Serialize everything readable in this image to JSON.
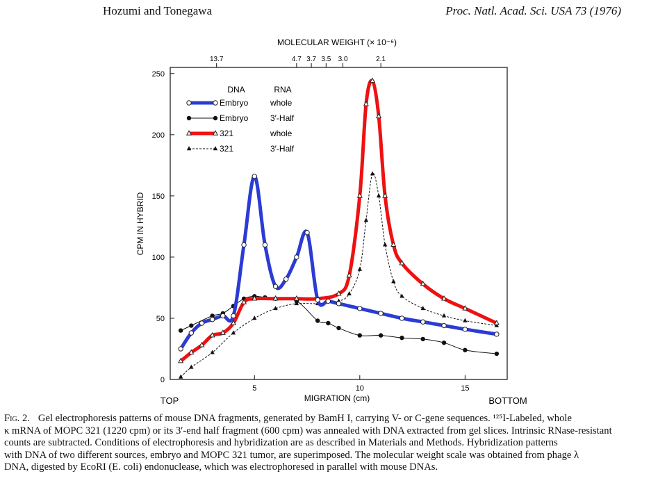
{
  "header": {
    "authors": "Hozumi and Tonegawa",
    "journal": "Proc. Natl. Acad. Sci. USA 73 (1976)"
  },
  "chart_data": {
    "type": "line",
    "xlabel": "MIGRATION (cm)",
    "ylabel": "CPM IN HYBRID",
    "top_axis_label": "MOLECULAR WEIGHT (× 10⁻⁶)",
    "xlim": [
      1,
      17
    ],
    "ylim": [
      0,
      255
    ],
    "x_ticks": [
      "5",
      "10",
      "15"
    ],
    "y_ticks": [
      "0",
      "50",
      "100",
      "150",
      "200",
      "250"
    ],
    "top_ticks": [
      {
        "label": "13.7",
        "x": 3.2
      },
      {
        "label": "4.7",
        "x": 7.0
      },
      {
        "label": "3.7",
        "x": 7.7
      },
      {
        "label": "3.5",
        "x": 8.4
      },
      {
        "label": "3.0",
        "x": 9.2
      },
      {
        "label": "2.1",
        "x": 11.0
      }
    ],
    "end_labels": {
      "left": "TOP",
      "right": "BOTTOM"
    },
    "legend": {
      "position": "top-left",
      "header": [
        "DNA",
        "RNA"
      ],
      "entries": [
        {
          "dna": "Embryo",
          "rna": "whole",
          "color": "#2b3bd6",
          "marker": "open-circle",
          "style": "thick"
        },
        {
          "dna": "Embryo",
          "rna": "3′-Half",
          "color": "#111111",
          "marker": "filled-circle",
          "style": "thin"
        },
        {
          "dna": "321",
          "rna": "whole",
          "color": "#ee1111",
          "marker": "open-triangle",
          "style": "thick"
        },
        {
          "dna": "321",
          "rna": "3′-Half",
          "color": "#111111",
          "marker": "filled-triangle",
          "style": "dashed"
        }
      ]
    },
    "series": [
      {
        "name": "Embryo whole",
        "color": "#2b3bd6",
        "x": [
          1.5,
          2.0,
          2.5,
          3.0,
          3.5,
          4.0,
          4.5,
          5.0,
          5.5,
          6.0,
          6.5,
          7.0,
          7.5,
          8.0,
          8.5,
          9.0,
          10.0,
          11.0,
          12.0,
          13.0,
          14.0,
          15.0,
          16.5
        ],
        "y": [
          25,
          38,
          46,
          49,
          52,
          52,
          110,
          166,
          110,
          76,
          82,
          100,
          120,
          65,
          64,
          62,
          58,
          54,
          50,
          47,
          44,
          41,
          37
        ]
      },
      {
        "name": "Embryo 3'-Half",
        "color": "#111111",
        "x": [
          1.5,
          2.0,
          3.0,
          3.5,
          4.0,
          4.5,
          5.0,
          5.5,
          6.0,
          7.0,
          8.0,
          8.5,
          9.0,
          10.0,
          11.0,
          12.0,
          13.0,
          14.0,
          15.0,
          16.5
        ],
        "y": [
          40,
          44,
          52,
          54,
          60,
          66,
          68,
          67,
          66,
          64,
          48,
          46,
          42,
          36,
          36,
          34,
          33,
          30,
          24,
          21
        ]
      },
      {
        "name": "321 whole",
        "color": "#ee1111",
        "x": [
          1.5,
          2.0,
          2.5,
          3.0,
          3.5,
          4.0,
          4.5,
          5.0,
          6.0,
          7.0,
          8.0,
          9.0,
          9.5,
          10.0,
          10.3,
          10.6,
          10.9,
          11.2,
          11.6,
          12.0,
          13.0,
          14.0,
          15.0,
          16.5
        ],
        "y": [
          15,
          22,
          28,
          36,
          38,
          46,
          63,
          66,
          66,
          66,
          66,
          70,
          85,
          150,
          225,
          244,
          215,
          150,
          110,
          95,
          78,
          66,
          58,
          46
        ]
      },
      {
        "name": "321 3'-Half",
        "color": "#111111",
        "x": [
          1.5,
          2.0,
          3.0,
          4.0,
          5.0,
          6.0,
          7.0,
          8.0,
          9.0,
          9.5,
          10.0,
          10.3,
          10.6,
          10.9,
          11.2,
          11.6,
          12.0,
          13.0,
          14.0,
          15.0,
          16.5
        ],
        "y": [
          2,
          10,
          22,
          38,
          50,
          58,
          62,
          62,
          64,
          70,
          90,
          130,
          168,
          150,
          110,
          80,
          68,
          58,
          52,
          48,
          44
        ]
      }
    ]
  },
  "caption": {
    "fig_label": "Fig. 2.",
    "lines": [
      "Gel electrophoresis patterns of mouse DNA fragments, generated by BamH I, carrying V- or C-gene sequences. ¹²⁵I-Labeled, whole",
      "κ mRNA of MOPC 321 (1220 cpm) or its 3′-end half fragment (600 cpm) was annealed with DNA extracted from gel slices. Intrinsic RNase-resistant",
      "counts are subtracted. Conditions of electrophoresis and hybridization are as described in Materials and Methods. Hybridization patterns",
      "with DNA of two different sources, embryo and MOPC 321 tumor, are superimposed. The molecular weight scale was obtained from phage λ",
      "DNA, digested by EcoRI (E. coli) endonuclease, which was electrophoresed in parallel with mouse DNAs."
    ]
  }
}
